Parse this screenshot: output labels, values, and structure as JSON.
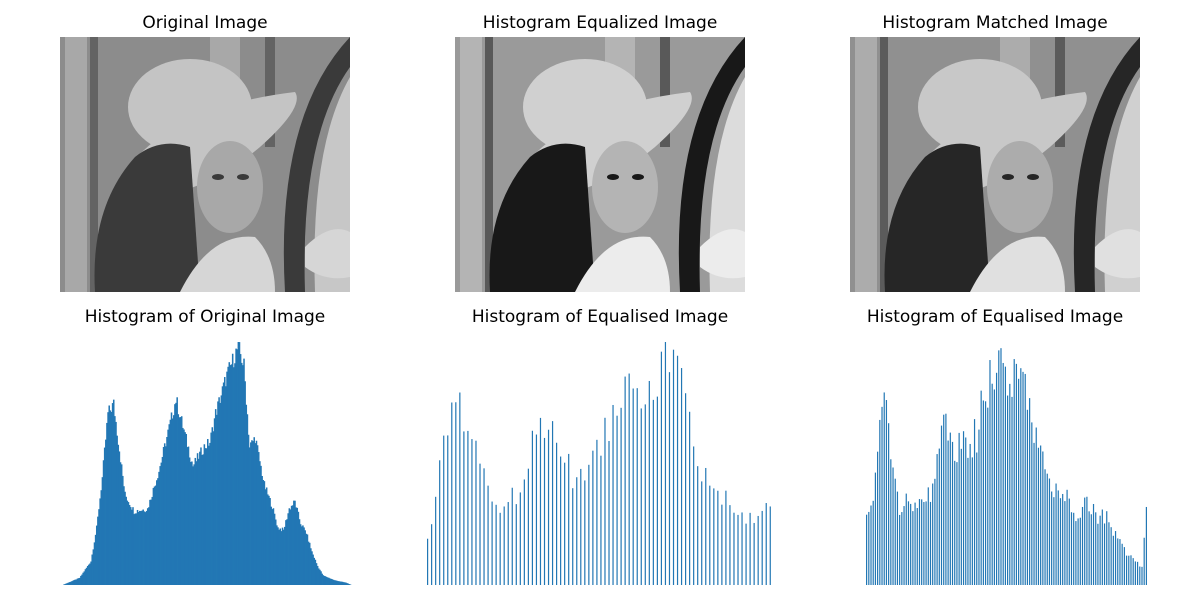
{
  "figure": {
    "titles": [
      "Original Image",
      "Histogram Equalized Image",
      "Histogram Matched Image",
      "Histogram of Original Image",
      "Histogram of Equalised Image",
      "Histogram of Equalised Image"
    ]
  },
  "colors": {
    "bar": "#2277b4",
    "image_bg": "#8a8a8a"
  },
  "chart_data": [
    {
      "type": "image",
      "title": "Original Image",
      "description_channel": "grayscale"
    },
    {
      "type": "image",
      "title": "Histogram Equalized Image",
      "description_channel": "grayscale"
    },
    {
      "type": "image",
      "title": "Histogram Matched Image",
      "description_channel": "grayscale"
    },
    {
      "type": "bar",
      "title": "Histogram of Original Image",
      "axes_visible": false,
      "xlim": [
        0,
        255
      ],
      "ylim": [
        0,
        100
      ],
      "envelope": {
        "bin": [
          0,
          15,
          25,
          30,
          35,
          40,
          45,
          55,
          63,
          75,
          85,
          100,
          115,
          125,
          130,
          135,
          145,
          155,
          160,
          165,
          170,
          178,
          185,
          190,
          195,
          200,
          205,
          210,
          215,
          220,
          225,
          230,
          240,
          250,
          255
        ],
        "value": [
          0,
          3,
          10,
          24,
          45,
          72,
          76,
          38,
          31,
          32,
          48,
          78,
          50,
          58,
          60,
          72,
          88,
          100,
          92,
          58,
          62,
          42,
          33,
          24,
          23,
          32,
          35,
          26,
          22,
          14,
          8,
          4,
          2,
          1,
          0
        ]
      }
    },
    {
      "type": "bar",
      "title": "Histogram of Equalised Image",
      "axes_visible": false,
      "xlim": [
        0,
        255
      ],
      "ylim": [
        0,
        100
      ],
      "envelope": {
        "bin": [
          0,
          5,
          10,
          15,
          20,
          25,
          30,
          35,
          40,
          45,
          50,
          60,
          70,
          80,
          90,
          100,
          110,
          120,
          130,
          140,
          150,
          160,
          170,
          180,
          190,
          200,
          210,
          220,
          230,
          240,
          250,
          255
        ],
        "value": [
          22,
          30,
          60,
          68,
          72,
          76,
          70,
          62,
          55,
          40,
          35,
          36,
          42,
          64,
          74,
          58,
          45,
          55,
          62,
          82,
          95,
          86,
          90,
          100,
          88,
          52,
          48,
          38,
          30,
          28,
          36,
          35
        ]
      },
      "gap_every": 3
    },
    {
      "type": "bar",
      "title": "Histogram of Equalised Image",
      "axes_visible": false,
      "xlim": [
        0,
        255
      ],
      "ylim": [
        0,
        100
      ],
      "envelope": {
        "bin": [
          0,
          5,
          10,
          15,
          20,
          25,
          30,
          35,
          40,
          50,
          60,
          70,
          80,
          90,
          100,
          110,
          120,
          130,
          140,
          150,
          160,
          170,
          180,
          190,
          200,
          210,
          220,
          230,
          240,
          250,
          255
        ],
        "value": [
          35,
          30,
          60,
          76,
          70,
          48,
          35,
          38,
          36,
          36,
          40,
          72,
          58,
          60,
          66,
          88,
          98,
          90,
          100,
          70,
          55,
          42,
          38,
          32,
          36,
          30,
          28,
          18,
          12,
          8,
          36
        ]
      },
      "gap_every": 2
    }
  ]
}
